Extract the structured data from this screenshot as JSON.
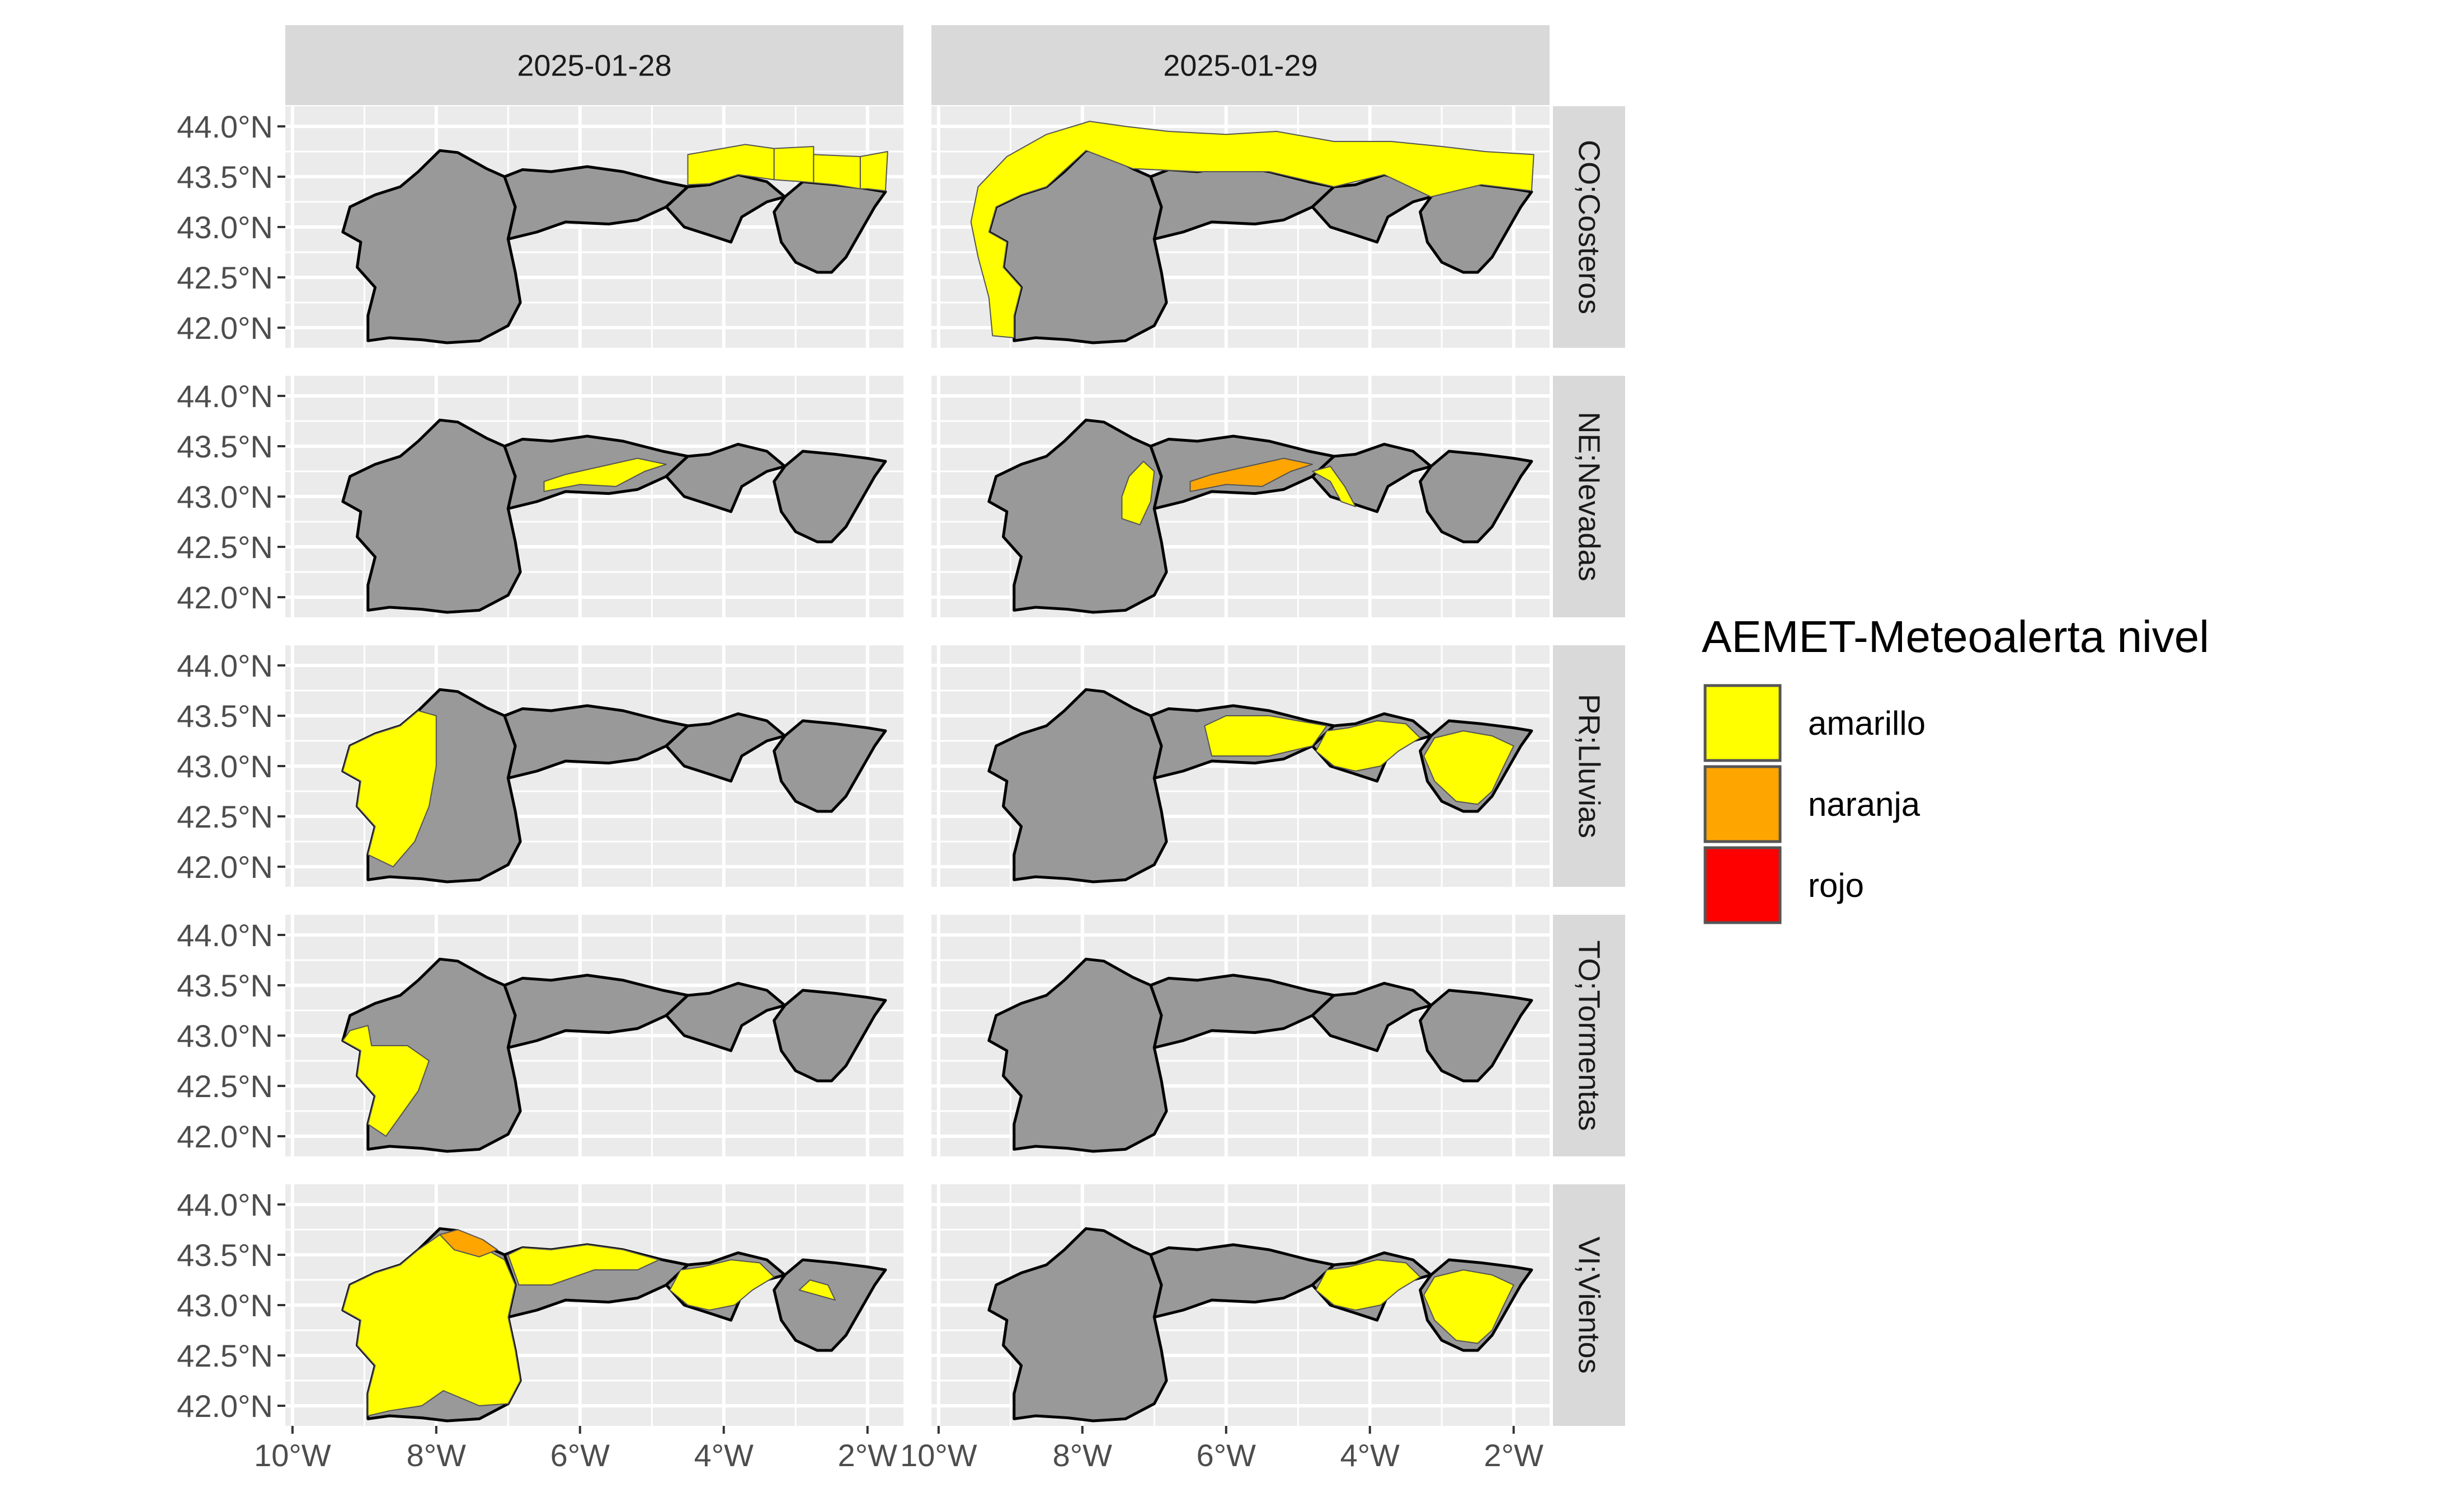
{
  "chart_data": {
    "type": "map",
    "facet_columns": [
      "2025-01-28",
      "2025-01-29"
    ],
    "facet_rows": [
      "CO;Costeros",
      "NE;Nevadas",
      "PR;Lluvias",
      "TO;Tormentas",
      "VI;Vientos"
    ],
    "x_ticks": [
      "10°W",
      "8°W",
      "6°W",
      "4°W",
      "2°W"
    ],
    "y_ticks": [
      "44.0°N",
      "43.5°N",
      "43.0°N",
      "42.5°N",
      "42.0°N"
    ],
    "xlim": [
      -10.1,
      -1.5
    ],
    "ylim": [
      41.8,
      44.2
    ],
    "legend": {
      "title": "AEMET-Meteoalerta nivel",
      "placement": "right",
      "items": [
        {
          "label": "amarillo",
          "color": "#FFFF00"
        },
        {
          "label": "naranja",
          "color": "#FFA500"
        },
        {
          "label": "rojo",
          "color": "#FF0000"
        }
      ]
    },
    "base_fill": "#999999",
    "panel_background": "#EBEBEB",
    "grid": true,
    "alerts": {
      "CO;Costeros|2025-01-28": [
        {
          "region": "coast-cantabria-basque",
          "level": "amarillo"
        }
      ],
      "CO;Costeros|2025-01-29": [
        {
          "region": "coast-galicia-cantabria-basque",
          "level": "amarillo"
        }
      ],
      "NE;Nevadas|2025-01-28": [
        {
          "region": "asturias-south",
          "level": "amarillo"
        }
      ],
      "NE;Nevadas|2025-01-29": [
        {
          "region": "galicia-east",
          "level": "amarillo"
        },
        {
          "region": "asturias-south",
          "level": "naranja"
        },
        {
          "region": "cantabria-south",
          "level": "amarillo"
        }
      ],
      "PR;Lluvias|2025-01-28": [
        {
          "region": "galicia-west",
          "level": "amarillo"
        }
      ],
      "PR;Lluvias|2025-01-29": [
        {
          "region": "asturias-east",
          "level": "amarillo"
        },
        {
          "region": "cantabria",
          "level": "amarillo"
        },
        {
          "region": "basque",
          "level": "amarillo"
        }
      ],
      "TO;Tormentas|2025-01-28": [
        {
          "region": "galicia-southwest",
          "level": "amarillo"
        }
      ],
      "TO;Tormentas|2025-01-29": [],
      "VI;Vientos|2025-01-28": [
        {
          "region": "galicia",
          "level": "amarillo"
        },
        {
          "region": "galicia-north-tip",
          "level": "naranja"
        },
        {
          "region": "asturias-north",
          "level": "amarillo"
        },
        {
          "region": "cantabria",
          "level": "amarillo"
        },
        {
          "region": "basque-small",
          "level": "amarillo"
        }
      ],
      "VI;Vientos|2025-01-29": [
        {
          "region": "cantabria",
          "level": "amarillo"
        },
        {
          "region": "basque",
          "level": "amarillo"
        }
      ]
    }
  }
}
